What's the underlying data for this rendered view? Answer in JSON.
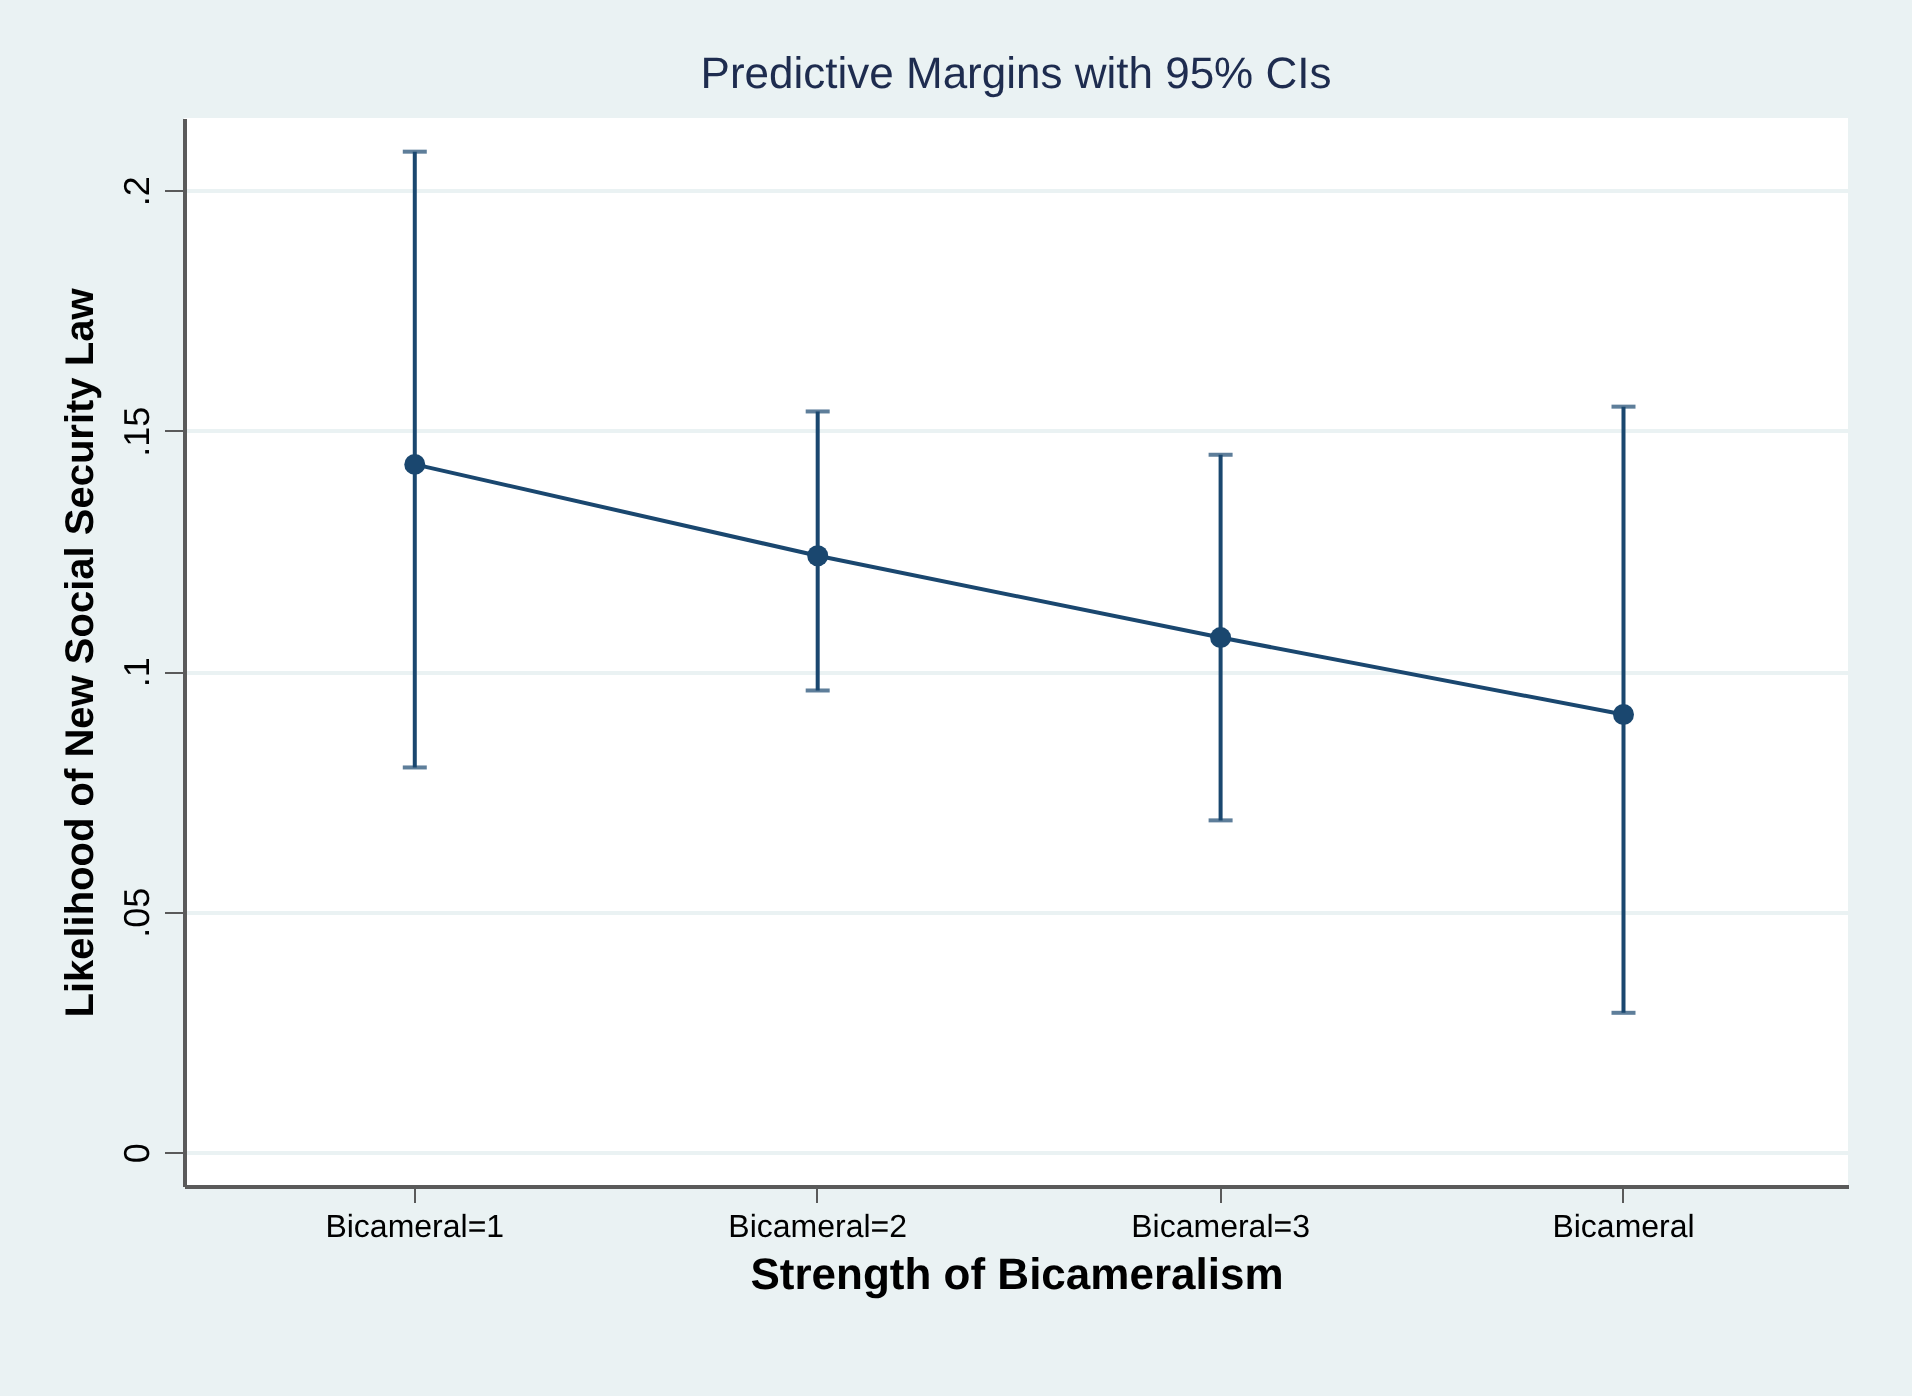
{
  "chart_data": {
    "type": "line",
    "title": "Predictive Margins with 95% CIs",
    "xlabel": "Strength of Bicameralism",
    "ylabel": "Likelihood of New Social Security Law",
    "categories": [
      "Bicameral=1",
      "Bicameral=2",
      "Bicameral=3",
      "Bicameral"
    ],
    "series": [
      {
        "color": "#1a476f",
        "values": [
          0.143,
          0.124,
          0.107,
          0.091
        ],
        "errors": [
          [
            0.08,
            0.208
          ],
          [
            0.096,
            0.154
          ],
          [
            0.069,
            0.145
          ],
          [
            0.029,
            0.155
          ]
        ]
      }
    ],
    "ylim": [
      -0.007,
      0.215
    ],
    "yticks": [
      {
        "value": 0,
        "label": "0"
      },
      {
        "value": 0.05,
        "label": ".05"
      },
      {
        "value": 0.1,
        "label": ".1"
      },
      {
        "value": 0.15,
        "label": ".15"
      },
      {
        "value": 0.2,
        "label": ".2"
      }
    ],
    "grid": "y",
    "marker": "circle",
    "line_style": "solid",
    "legend": false
  }
}
